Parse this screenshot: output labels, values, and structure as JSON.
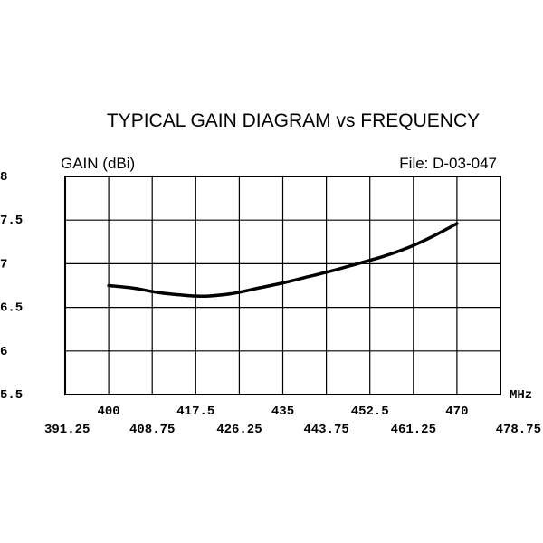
{
  "chart_data": {
    "type": "line",
    "title": "TYPICAL GAIN DIAGRAM vs FREQUENCY",
    "ylabel": "GAIN (dBi)",
    "file_label": "File:  D-03-047",
    "xunit": "MHz",
    "xlim": [
      391.25,
      478.75
    ],
    "ylim": [
      5.5,
      8
    ],
    "grid": true,
    "y_ticks": [
      "8",
      "7.5",
      "7",
      "6.5",
      "6",
      "5.5"
    ],
    "x_ticks_top": [
      "400",
      "417.5",
      "435",
      "452.5",
      "470"
    ],
    "x_ticks_bottom": [
      "391.25",
      "408.75",
      "426.25",
      "443.75",
      "461.25",
      "478.75"
    ],
    "series": [
      {
        "x": [
          400,
          405,
          410,
          415,
          417.5,
          420,
          425,
          430,
          435,
          440,
          445,
          450,
          455,
          460,
          465,
          470
        ],
        "y": [
          6.75,
          6.72,
          6.67,
          6.64,
          6.63,
          6.63,
          6.66,
          6.72,
          6.78,
          6.85,
          6.92,
          7.0,
          7.08,
          7.18,
          7.31,
          7.46
        ]
      }
    ]
  },
  "colors": {
    "line": "#000000",
    "grid": "#000000",
    "background": "#ffffff"
  }
}
